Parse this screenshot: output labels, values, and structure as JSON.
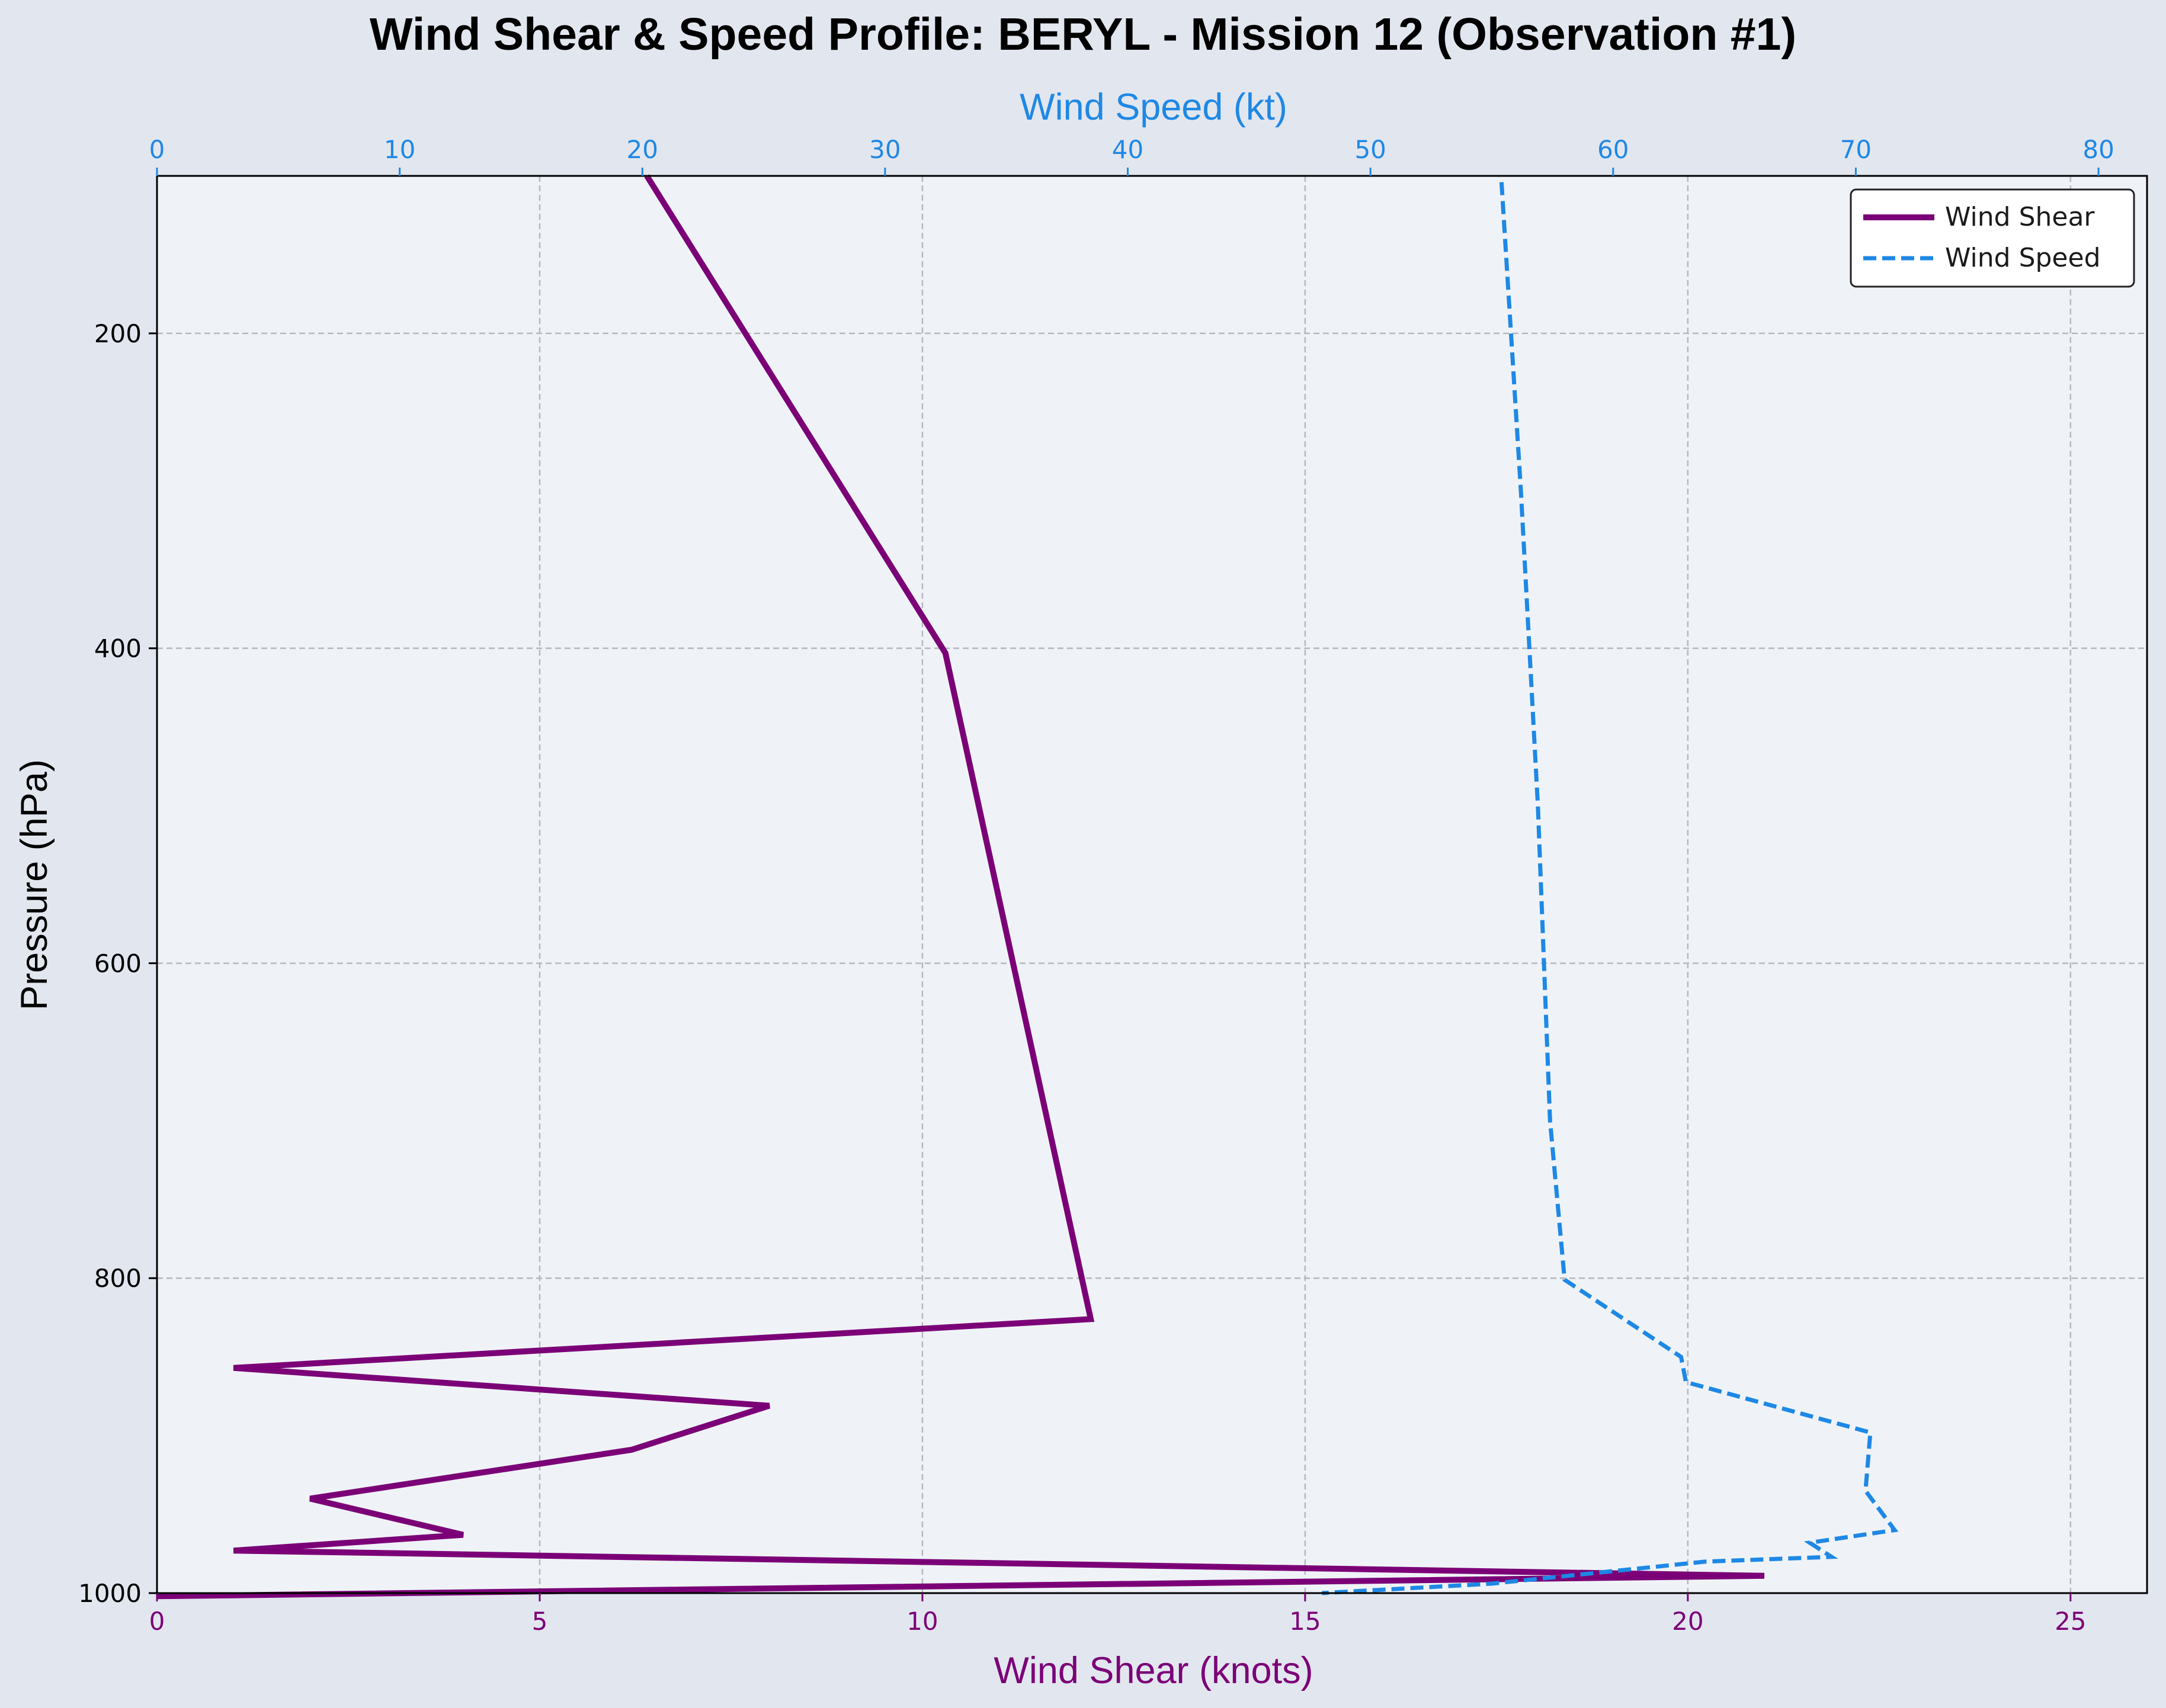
{
  "chart_data": {
    "type": "line",
    "title": "Wind Shear & Speed Profile: BERYL - Mission 12 (Observation #1)",
    "ylabel": "Pressure (hPa)",
    "xlabel_bottom": "Wind Shear (knots)",
    "xlabel_top": "Wind Speed (kt)",
    "y_inverted": true,
    "ylim": [
      1000,
      100
    ],
    "xlim_bottom": [
      0,
      26
    ],
    "xlim_top": [
      0,
      82
    ],
    "y_ticks": [
      200,
      400,
      600,
      800,
      1000
    ],
    "x_ticks_bottom": [
      0,
      5,
      10,
      15,
      20,
      25
    ],
    "x_ticks_top": [
      0,
      10,
      20,
      30,
      40,
      50,
      60,
      70,
      80
    ],
    "grid": true,
    "legend_position": "top-right",
    "series": [
      {
        "name": "Wind Shear",
        "axis": "bottom",
        "color": "#7b0077",
        "style": "solid",
        "points": [
          {
            "x": 6.4,
            "y": 100
          },
          {
            "x": 10.3,
            "y": 403
          },
          {
            "x": 12.2,
            "y": 826
          },
          {
            "x": 1.0,
            "y": 857
          },
          {
            "x": 8.0,
            "y": 881
          },
          {
            "x": 6.2,
            "y": 909
          },
          {
            "x": 2.0,
            "y": 940
          },
          {
            "x": 4.0,
            "y": 963
          },
          {
            "x": 1.0,
            "y": 973
          },
          {
            "x": 21.0,
            "y": 989
          },
          {
            "x": 0.0,
            "y": 1002
          }
        ]
      },
      {
        "name": "Wind Speed",
        "axis": "top",
        "color": "#1e88e5",
        "style": "dashed",
        "points": [
          {
            "x": 55.4,
            "y": 104
          },
          {
            "x": 56.2,
            "y": 300
          },
          {
            "x": 56.9,
            "y": 500
          },
          {
            "x": 57.4,
            "y": 700
          },
          {
            "x": 58.0,
            "y": 801
          },
          {
            "x": 62.8,
            "y": 850
          },
          {
            "x": 63.0,
            "y": 866
          },
          {
            "x": 70.6,
            "y": 898
          },
          {
            "x": 70.4,
            "y": 935
          },
          {
            "x": 71.6,
            "y": 960
          },
          {
            "x": 68.1,
            "y": 968
          },
          {
            "x": 69.0,
            "y": 977
          },
          {
            "x": 63.8,
            "y": 980
          },
          {
            "x": 55.0,
            "y": 994
          },
          {
            "x": 48.0,
            "y": 1000
          }
        ]
      }
    ]
  }
}
